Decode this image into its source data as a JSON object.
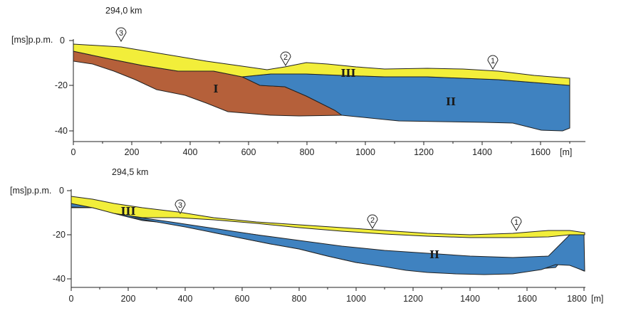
{
  "profiles": [
    {
      "title": "294,0 km",
      "y_axis_label": "[ms]p.p.m.",
      "x_unit": "[m]",
      "x_ticks": [
        "0",
        "200",
        "400",
        "600",
        "800",
        "1000",
        "1200",
        "1400",
        "1600"
      ],
      "y_ticks": [
        "0",
        "-20",
        "-40"
      ],
      "xlim": [
        0,
        1760
      ],
      "ylim": [
        -44,
        0
      ],
      "layer_labels": [
        "I",
        "II",
        "III"
      ],
      "markers": [
        "1",
        "2",
        "3"
      ],
      "colors": {
        "layer_I": "#b5603a",
        "layer_II": "#3f82c0",
        "layer_III": "#f2ee3a"
      }
    },
    {
      "title": "294,5 km",
      "y_axis_label": "[ms]p.p.m.",
      "x_unit": "[m]",
      "x_ticks": [
        "0",
        "200",
        "400",
        "600",
        "800",
        "1000",
        "1200",
        "1400",
        "1600",
        "1800"
      ],
      "y_ticks": [
        "0",
        "-20",
        "-40"
      ],
      "xlim": [
        0,
        1830
      ],
      "ylim": [
        -44,
        0
      ],
      "layer_labels": [
        "II",
        "III"
      ],
      "markers": [
        "1",
        "2",
        "3"
      ],
      "colors": {
        "layer_II": "#3f82c0",
        "layer_III": "#f2ee3a"
      }
    }
  ]
}
